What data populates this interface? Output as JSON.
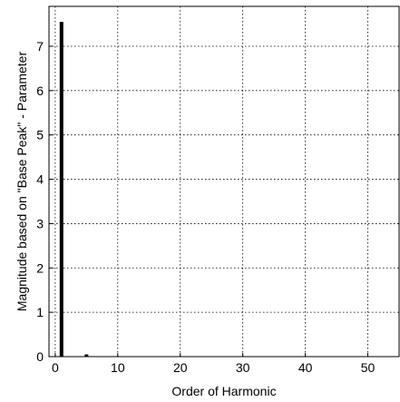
{
  "chart_data": {
    "type": "bar",
    "title": "",
    "xlabel": "Order of Harmonic",
    "ylabel": "Magnitude based on \"Base Peak\" - Parameter",
    "xlim": [
      -1,
      55
    ],
    "ylim": [
      0,
      7.9
    ],
    "xticks": [
      0,
      10,
      20,
      30,
      40,
      50
    ],
    "yticks": [
      0,
      1,
      2,
      3,
      4,
      5,
      6,
      7
    ],
    "x": [
      1,
      5
    ],
    "values": [
      7.55,
      0.05
    ],
    "grid": true,
    "grid_style": "dotted",
    "bar_color": "#000000"
  }
}
